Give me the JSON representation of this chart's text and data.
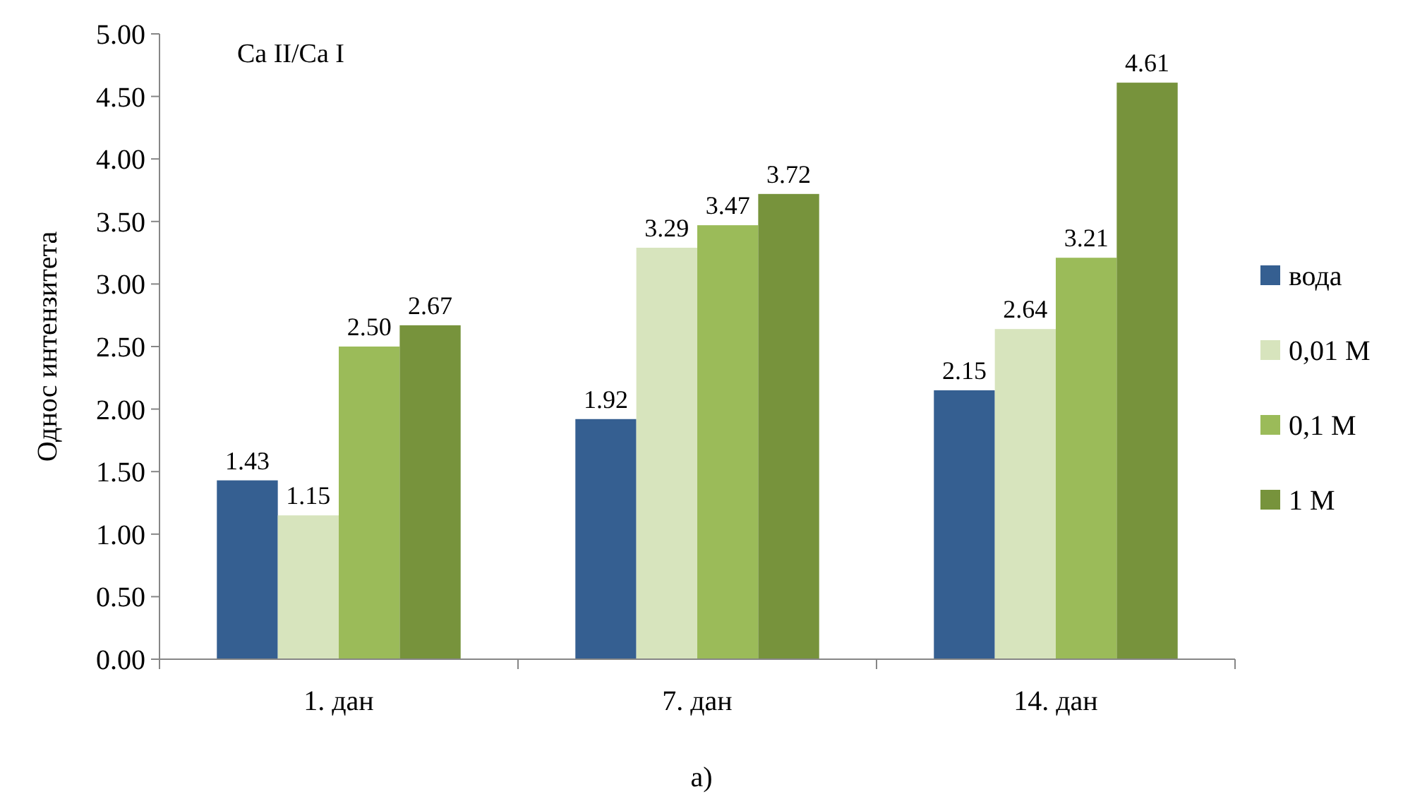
{
  "chart_data": {
    "type": "bar",
    "ylabel": "Однос интензитета",
    "annotations": [
      "Ca II/Ca I",
      "а)"
    ],
    "categories": [
      "1. дан",
      "7. дан",
      "14. дан"
    ],
    "series": [
      {
        "name": "вода",
        "color": "#355f91",
        "values": [
          1.43,
          1.92,
          2.15
        ],
        "value_labels": [
          "1.43",
          "1.92",
          "2.15"
        ]
      },
      {
        "name": "0,01 M",
        "color": "#d7e4bd",
        "values": [
          1.15,
          3.29,
          2.64
        ],
        "value_labels": [
          "1.15",
          "3.29",
          "2.64"
        ]
      },
      {
        "name": "0,1 M",
        "color": "#9bbb59",
        "values": [
          2.5,
          3.47,
          3.21
        ],
        "value_labels": [
          "2.50",
          "3.47",
          "3.21"
        ]
      },
      {
        "name": "1 M",
        "color": "#77933c",
        "values": [
          2.67,
          3.72,
          4.61
        ],
        "value_labels": [
          "2.67",
          "3.72",
          "4.61"
        ]
      }
    ],
    "ylim": [
      0,
      5
    ],
    "yticks": [
      {
        "value": 0,
        "label": "0.00"
      },
      {
        "value": 0.5,
        "label": "0.50"
      },
      {
        "value": 1,
        "label": "1.00"
      },
      {
        "value": 1.5,
        "label": "1.50"
      },
      {
        "value": 2,
        "label": "2.00"
      },
      {
        "value": 2.5,
        "label": "2.50"
      },
      {
        "value": 3,
        "label": "3.00"
      },
      {
        "value": 3.5,
        "label": "3.50"
      },
      {
        "value": 4,
        "label": "4.00"
      },
      {
        "value": 4.5,
        "label": "4.50"
      },
      {
        "value": 5,
        "label": "5.00"
      }
    ],
    "grid": false,
    "legend": "right"
  }
}
